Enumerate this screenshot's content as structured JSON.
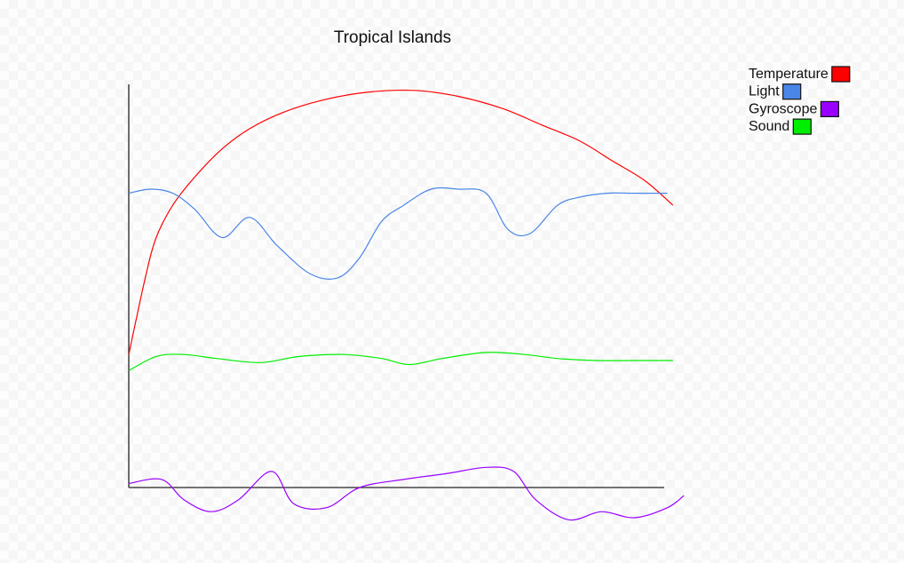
{
  "chart_data": {
    "type": "line",
    "title": "Tropical Islands",
    "xlabel": "",
    "ylabel": "",
    "grid": false,
    "legend_position": "top-right",
    "xlim": [
      0,
      100
    ],
    "ylim": [
      -7,
      100
    ],
    "series": [
      {
        "name": "Temperature",
        "color": "#ff0000",
        "x": [
          0,
          3,
          5,
          8,
          12,
          17,
          22,
          28,
          35,
          43,
          52,
          60,
          68,
          75,
          82,
          88,
          94,
          99
        ],
        "y": [
          33,
          52,
          62,
          70,
          77,
          84,
          89,
          93,
          96,
          98,
          98.5,
          97,
          94,
          90,
          86,
          81,
          76,
          70
        ]
      },
      {
        "name": "Light",
        "color": "#4a86e8",
        "x": [
          0,
          4,
          8,
          12,
          17,
          22,
          27,
          33,
          38,
          42,
          46,
          50,
          55,
          60,
          65,
          69,
          73,
          78,
          82,
          87,
          92,
          98
        ],
        "y": [
          73,
          74,
          73,
          69,
          62,
          67,
          60,
          53,
          52,
          57,
          66,
          70,
          74,
          74,
          73,
          64,
          63,
          70,
          72,
          73,
          73,
          73
        ]
      },
      {
        "name": "Gyroscope",
        "color": "#9900ff",
        "x": [
          0,
          6,
          10,
          15,
          20,
          26,
          30,
          36,
          42,
          50,
          58,
          65,
          70,
          74,
          80,
          86,
          92,
          98,
          101
        ],
        "y": [
          1,
          2,
          -3,
          -6,
          -3,
          4,
          -4,
          -5,
          0,
          2,
          3.5,
          5,
          4,
          -3,
          -8,
          -6,
          -7.5,
          -5,
          -2
        ]
      },
      {
        "name": "Sound",
        "color": "#00ee00",
        "x": [
          0,
          5,
          10,
          16,
          24,
          31,
          39,
          46,
          51,
          57,
          65,
          72,
          78,
          85,
          92,
          99
        ],
        "y": [
          29,
          32.5,
          33,
          32,
          31,
          32.5,
          33,
          32,
          30.5,
          32,
          33.5,
          33,
          32,
          31.5,
          31.5,
          31.5
        ]
      }
    ]
  }
}
